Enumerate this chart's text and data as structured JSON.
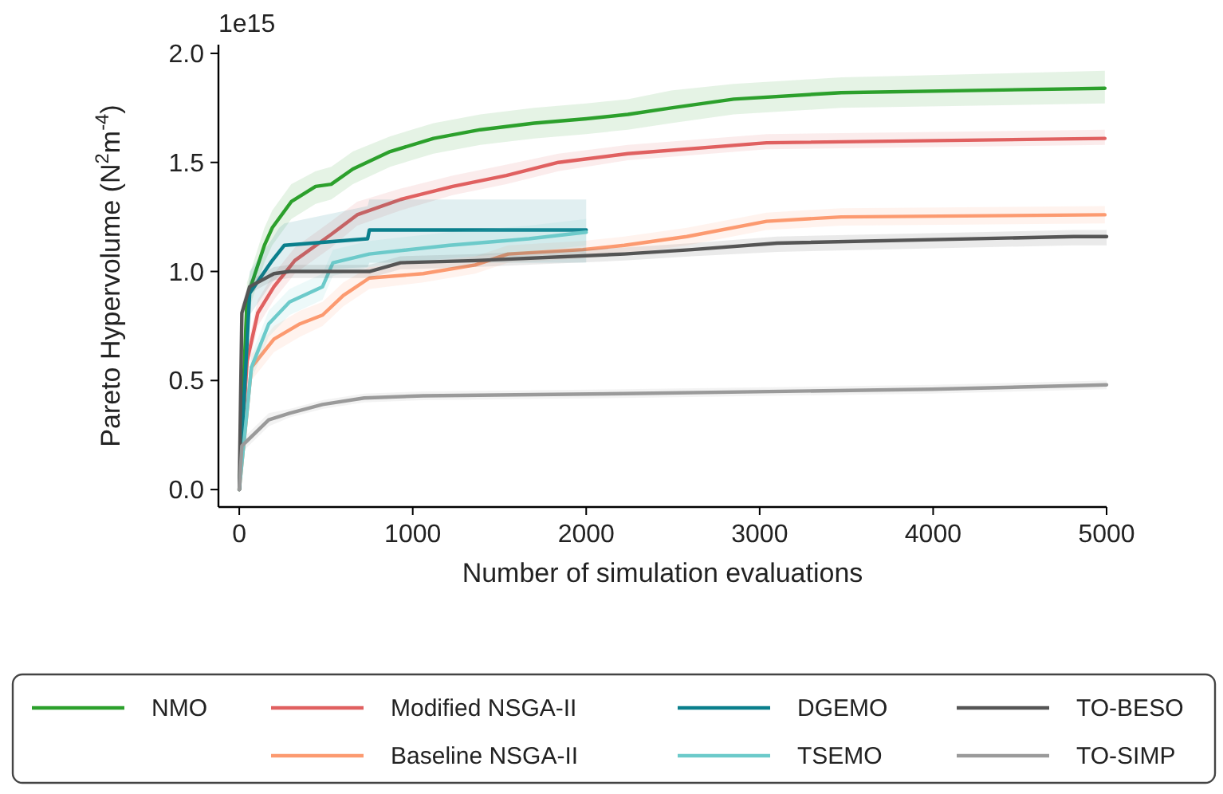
{
  "chart_data": {
    "type": "line",
    "xlabel": "Number of simulation evaluations",
    "ylabel": "Pareto Hypervolume (N$^{2}$m$^{-4}$)",
    "annotations": [
      "1e15"
    ],
    "xlim": [
      -120,
      5000
    ],
    "xticks": [
      0,
      1000,
      2000,
      3000,
      4000,
      5000
    ],
    "ylim": [
      -0.08,
      2.04
    ],
    "yticks": [
      {
        "value": 0,
        "label": "0.0"
      },
      {
        "value": 0.5,
        "label": "0.5"
      },
      {
        "value": 1,
        "label": "1.0"
      },
      {
        "value": 1.5,
        "label": "1.5"
      },
      {
        "value": 2,
        "label": "2.0"
      }
    ],
    "grid": false,
    "legend": "bottom",
    "line_style": "solid",
    "marker": "none",
    "series": [
      {
        "name": "NMO",
        "color": "#2ca02c",
        "x": [
          0,
          45,
          145,
          190,
          300,
          440,
          530,
          655,
          870,
          1120,
          1390,
          1700,
          2000,
          2240,
          2490,
          2850,
          3470,
          4990
        ],
        "values": [
          0,
          0.88,
          1.12,
          1.2,
          1.32,
          1.39,
          1.4,
          1.47,
          1.55,
          1.61,
          1.65,
          1.68,
          1.7,
          1.72,
          1.75,
          1.79,
          1.82,
          1.84
        ],
        "lower": [
          0,
          0.8,
          1.04,
          1.12,
          1.24,
          1.31,
          1.33,
          1.4,
          1.48,
          1.54,
          1.58,
          1.61,
          1.63,
          1.65,
          1.68,
          1.72,
          1.75,
          1.77
        ],
        "upper": [
          0,
          0.95,
          1.2,
          1.28,
          1.4,
          1.46,
          1.48,
          1.55,
          1.62,
          1.68,
          1.72,
          1.75,
          1.77,
          1.79,
          1.83,
          1.86,
          1.89,
          1.92
        ]
      },
      {
        "name": "Modified NSGA-II",
        "color": "#e06060",
        "x": [
          0,
          45,
          107,
          200,
          320,
          530,
          680,
          930,
          1230,
          1540,
          1840,
          2240,
          3040,
          4990
        ],
        "values": [
          0,
          0.59,
          0.81,
          0.93,
          1.05,
          1.17,
          1.26,
          1.33,
          1.39,
          1.44,
          1.5,
          1.54,
          1.59,
          1.61
        ],
        "lower": [
          0,
          0.53,
          0.75,
          0.87,
          0.99,
          1.11,
          1.21,
          1.28,
          1.35,
          1.4,
          1.46,
          1.51,
          1.56,
          1.58
        ],
        "upper": [
          0,
          0.65,
          0.87,
          0.99,
          1.11,
          1.23,
          1.32,
          1.38,
          1.44,
          1.49,
          1.54,
          1.58,
          1.63,
          1.65
        ]
      },
      {
        "name": "Baseline NSGA-II",
        "color": "#fc9a70",
        "x": [
          0,
          70,
          200,
          350,
          480,
          600,
          750,
          1060,
          1360,
          1550,
          1980,
          2220,
          2580,
          3040,
          3470,
          4990
        ],
        "values": [
          0,
          0.56,
          0.69,
          0.76,
          0.8,
          0.89,
          0.97,
          0.99,
          1.03,
          1.08,
          1.1,
          1.12,
          1.16,
          1.23,
          1.25,
          1.26
        ],
        "lower": [
          0,
          0.5,
          0.63,
          0.7,
          0.75,
          0.84,
          0.92,
          0.95,
          0.99,
          1.04,
          1.06,
          1.08,
          1.12,
          1.19,
          1.21,
          1.22
        ],
        "upper": [
          0,
          0.62,
          0.75,
          0.82,
          0.86,
          0.95,
          1.02,
          1.04,
          1.07,
          1.12,
          1.14,
          1.16,
          1.2,
          1.27,
          1.29,
          1.3
        ]
      },
      {
        "name": "DGEMO",
        "color": "#0a7f8c",
        "x": [
          0,
          60,
          190,
          230,
          260,
          740,
          750,
          2000
        ],
        "values": [
          0,
          0.9,
          1.05,
          1.09,
          1.12,
          1.15,
          1.19,
          1.19
        ],
        "lower": [
          0,
          0.8,
          0.95,
          0.98,
          1.0,
          1.02,
          1.04,
          1.04
        ],
        "upper": [
          0,
          1.0,
          1.15,
          1.2,
          1.22,
          1.3,
          1.33,
          1.33
        ]
      },
      {
        "name": "TSEMO",
        "color": "#6ccaca",
        "x": [
          0,
          70,
          170,
          290,
          480,
          540,
          750,
          1210,
          1670,
          2000
        ],
        "values": [
          0,
          0.56,
          0.76,
          0.86,
          0.93,
          1.04,
          1.08,
          1.12,
          1.15,
          1.18
        ],
        "lower": [
          0,
          0.5,
          0.7,
          0.8,
          0.87,
          0.98,
          1.02,
          1.06,
          1.09,
          1.12
        ],
        "upper": [
          0,
          0.62,
          0.82,
          0.92,
          0.99,
          1.1,
          1.14,
          1.18,
          1.21,
          1.24
        ]
      },
      {
        "name": "TO-BESO",
        "color": "#555555",
        "x": [
          0,
          15,
          60,
          200,
          290,
          750,
          930,
          1360,
          2220,
          2610,
          3100,
          4810,
          5000
        ],
        "values": [
          0,
          0.81,
          0.93,
          0.99,
          1.0,
          1.0,
          1.04,
          1.05,
          1.08,
          1.1,
          1.13,
          1.16,
          1.16
        ],
        "lower": [
          0,
          0.77,
          0.9,
          0.96,
          0.97,
          0.97,
          1.01,
          1.02,
          1.05,
          1.07,
          1.09,
          1.12,
          1.12
        ],
        "upper": [
          0,
          0.85,
          0.96,
          1.02,
          1.03,
          1.03,
          1.07,
          1.08,
          1.11,
          1.13,
          1.16,
          1.19,
          1.19
        ]
      },
      {
        "name": "TO-SIMP",
        "color": "#9a9a9a",
        "x": [
          0,
          15,
          170,
          290,
          480,
          720,
          1060,
          2220,
          3990,
          5000
        ],
        "values": [
          0,
          0.2,
          0.32,
          0.35,
          0.39,
          0.42,
          0.43,
          0.44,
          0.46,
          0.48
        ],
        "lower": [
          0,
          0.17,
          0.29,
          0.33,
          0.37,
          0.4,
          0.41,
          0.42,
          0.44,
          0.46
        ],
        "upper": [
          0,
          0.23,
          0.35,
          0.37,
          0.41,
          0.44,
          0.45,
          0.46,
          0.48,
          0.5
        ]
      }
    ]
  }
}
